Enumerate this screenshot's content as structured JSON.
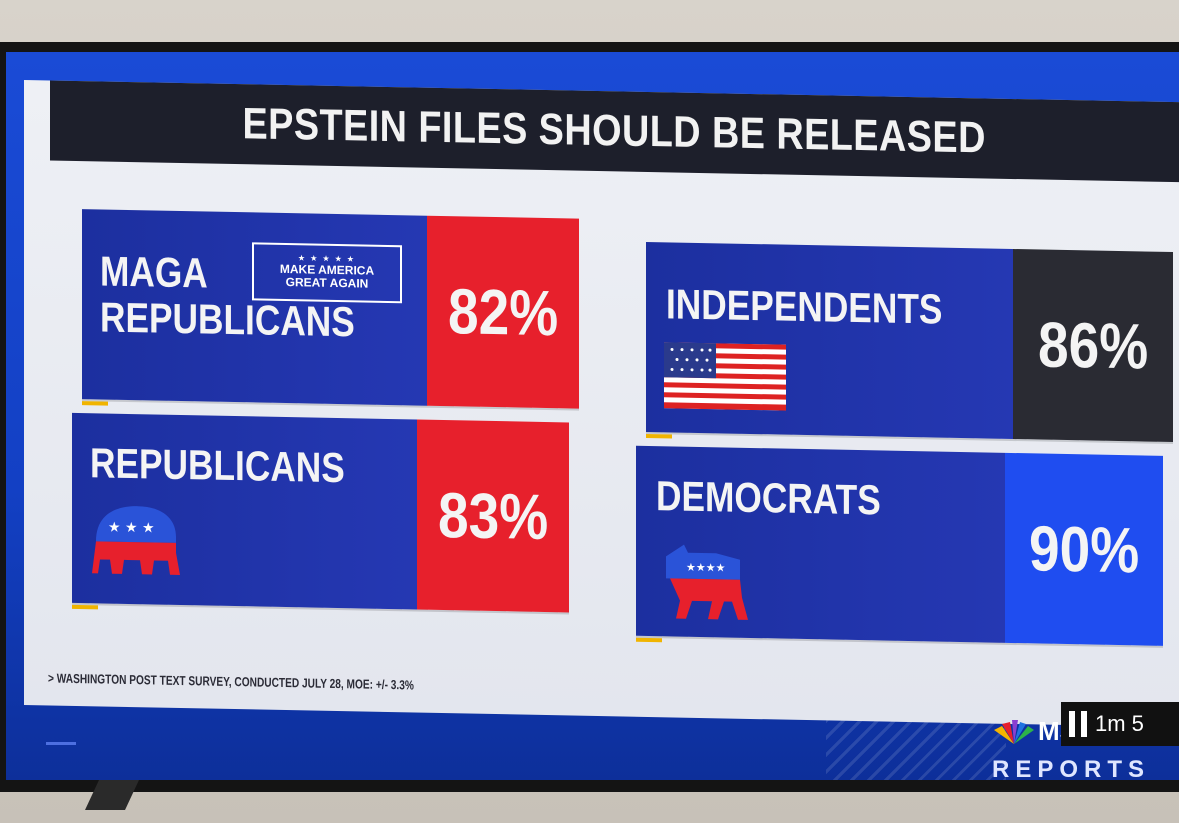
{
  "headline": "EPSTEIN FILES SHOULD BE RELEASED",
  "cards": {
    "maga": {
      "label_line1": "MAGA",
      "label_line2": "REPUBLICANS",
      "badge_line1": "MAKE AMERICA",
      "badge_line2": "GREAT AGAIN",
      "percent": "82%"
    },
    "independents": {
      "label": "INDEPENDENTS",
      "percent": "86%"
    },
    "republicans": {
      "label": "REPUBLICANS",
      "percent": "83%"
    },
    "democrats": {
      "label": "DEMOCRATS",
      "percent": "90%"
    }
  },
  "source_note": "> WASHINGTON POST TEXT SURVEY, CONDUCTED JULY 28, MOE: +/- 3.3%",
  "network": {
    "logo_text": "MSN",
    "show_name": "REPORTS",
    "timer": "1m 5"
  },
  "colors": {
    "red": "#e7202c",
    "navy": "#1c2f9f",
    "charcoal": "#2a2b33",
    "bright_blue": "#1f4df0",
    "title_bar": "#1d1f2b"
  }
}
